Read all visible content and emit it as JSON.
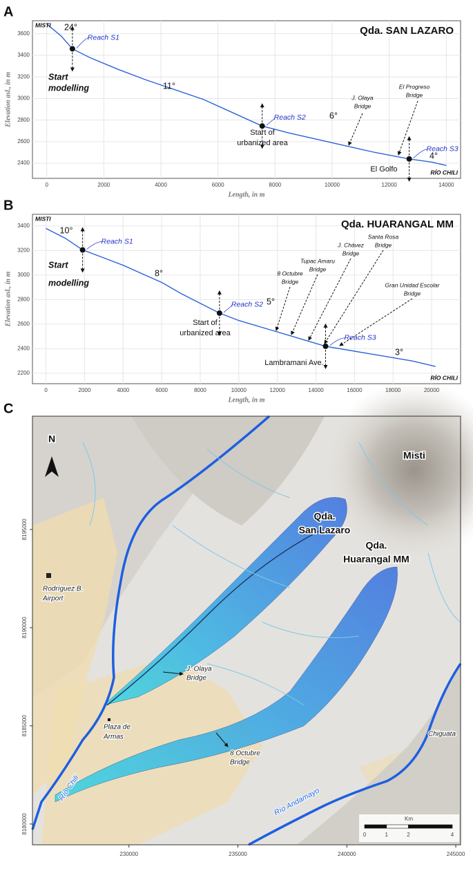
{
  "chart_data": [
    {
      "type": "line",
      "panel": "A",
      "title": "Qda. SAN LAZARO",
      "start_label": "MISTI",
      "end_label": "RÍO CHILI",
      "x_label": "Length, in m",
      "y_label": "Elevation asl., in m",
      "color": "#2b63d9",
      "grid": true,
      "xlim": [
        -500,
        14500
      ],
      "ylim": [
        2260,
        3720
      ],
      "xticks": [
        0,
        2000,
        4000,
        6000,
        8000,
        10000,
        12000,
        14000
      ],
      "yticks": [
        2400,
        2600,
        2800,
        3000,
        3200,
        3400,
        3600
      ],
      "x": [
        0,
        500,
        900,
        1500,
        2500,
        3500,
        4500,
        5500,
        6500,
        7550,
        8500,
        9500,
        10500,
        11500,
        12700,
        13500,
        14000
      ],
      "values": [
        3690,
        3580,
        3460,
        3380,
        3270,
        3170,
        3080,
        2990,
        2870,
        2745,
        2680,
        2620,
        2560,
        2500,
        2440,
        2410,
        2380
      ],
      "reach_points": {
        "names": [
          "Reach S1",
          "Reach S2",
          "Reach S3"
        ],
        "x": [
          900,
          7550,
          12700
        ],
        "y": [
          3460,
          2745,
          2440
        ]
      },
      "annotations": [
        [
          "24°"
        ],
        [
          "Start",
          "modelling"
        ],
        [
          "11°"
        ],
        [
          "Start of",
          "urbanized area"
        ],
        [
          "6°"
        ],
        [
          "J. Olaya",
          "Bridge"
        ],
        [
          "El Progreso",
          "Bridge"
        ],
        [
          "4°"
        ],
        [
          "El Golfo"
        ]
      ]
    },
    {
      "type": "line",
      "panel": "B",
      "title": "Qda. HUARANGAL MM",
      "start_label": "MISTI",
      "end_label": "RÍO CHILI",
      "x_label": "Length, in m",
      "y_label": "Elevation asl., in m",
      "color": "#2b63d9",
      "grid": true,
      "xlim": [
        -700,
        21500
      ],
      "ylim": [
        2115,
        3495
      ],
      "xticks": [
        0,
        2000,
        4000,
        6000,
        8000,
        10000,
        12000,
        14000,
        16000,
        18000,
        20000
      ],
      "yticks": [
        2200,
        2400,
        2600,
        2800,
        3000,
        3200,
        3400
      ],
      "x": [
        0,
        1000,
        1900,
        3000,
        4000,
        5000,
        6000,
        7000,
        8000,
        9000,
        10000,
        11500,
        13000,
        14500,
        16000,
        17500,
        19000,
        20200
      ],
      "values": [
        3380,
        3300,
        3205,
        3140,
        3080,
        3010,
        2940,
        2850,
        2770,
        2690,
        2630,
        2560,
        2490,
        2420,
        2380,
        2340,
        2300,
        2255
      ],
      "reach_points": {
        "names": [
          "Reach S1",
          "Reach S2",
          "Reach S3"
        ],
        "x": [
          1900,
          9000,
          14500
        ],
        "y": [
          3205,
          2690,
          2420
        ]
      },
      "annotations": [
        [
          "10°"
        ],
        [
          "Start",
          "modelling"
        ],
        [
          "8°"
        ],
        [
          "Start of",
          "urbanized area"
        ],
        [
          "5°"
        ],
        [
          "8 Octubre",
          "Bridge"
        ],
        [
          "Tupac Amaru",
          "Bridge"
        ],
        [
          "J. Chávez",
          "Bridge"
        ],
        [
          "Santa Rosa",
          "Bridge"
        ],
        [
          "Gran Unidad Escolar",
          "Bridge"
        ],
        [
          "Lambramani Ave."
        ],
        [
          "3°"
        ]
      ]
    }
  ],
  "map": {
    "panel": "C",
    "north": "N",
    "xlim": [
      225570,
      245220
    ],
    "ylim": [
      8178940,
      8200770
    ],
    "xticks": [
      230000,
      235000,
      240000,
      245000
    ],
    "yticks": [
      8180000,
      8185000,
      8190000,
      8195000
    ],
    "labels": [
      [
        "Misti"
      ],
      [
        "Qda.",
        "San Lazaro"
      ],
      [
        "Qda.",
        "Huarangal MM"
      ],
      [
        "Rodríguez B.",
        "Airport"
      ],
      [
        "J. Olaya",
        "Bridge"
      ],
      [
        "Plaza de",
        "Armas"
      ],
      [
        "8 Octubre",
        "Bridge"
      ],
      [
        "Chiguata"
      ]
    ],
    "rivers": [
      "Río Chili",
      "Río Andamayo"
    ],
    "scale_bar": {
      "unit": "Km",
      "ticks": [
        0,
        1,
        2,
        4
      ]
    }
  }
}
